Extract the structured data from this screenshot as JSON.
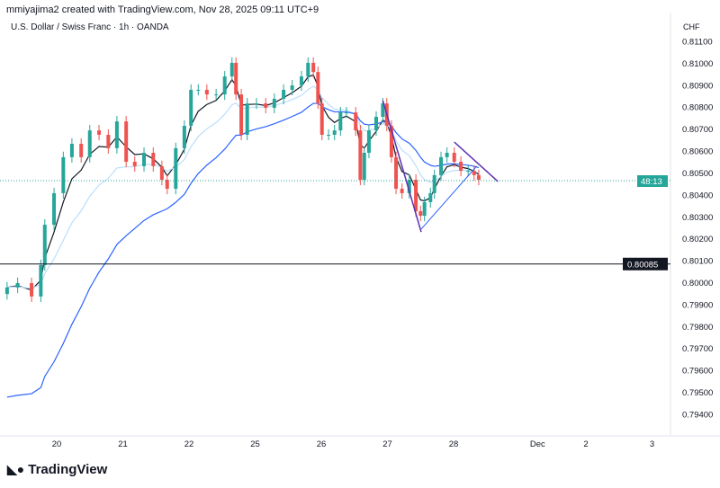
{
  "header": {
    "attribution": "mmiyajima2 created with TradingView.com, Nov 28, 2025 09:11 UTC+9",
    "symbol": "U.S. Dollar / Swiss Franc · 1h · OANDA",
    "currency": "CHF"
  },
  "logo": {
    "text": "TradingView"
  },
  "colors": {
    "up": "#26a69a",
    "down": "#ef5350",
    "ma_fast": "#131722",
    "ma_mid": "#bbdefb",
    "ma_slow": "#2962ff",
    "trend": "#5b2fb6",
    "channel": "#2962ff"
  },
  "chart_data": {
    "type": "candlestick",
    "x_unit": "trading days since Nov 20",
    "ylim": [
      0.7937,
      0.8114
    ],
    "yticks": [
      "0.81100",
      "0.81000",
      "0.80900",
      "0.80800",
      "0.80700",
      "0.80600",
      "0.80500",
      "0.80400",
      "0.80300",
      "0.80200",
      "0.80100",
      "0.80000",
      "0.79900",
      "0.79800",
      "0.79700",
      "0.79600",
      "0.79500",
      "0.79400"
    ],
    "xticks": [
      {
        "t": 0,
        "label": "20"
      },
      {
        "t": 1,
        "label": "21"
      },
      {
        "t": 2,
        "label": "22"
      },
      {
        "t": 3,
        "label": "25"
      },
      {
        "t": 4,
        "label": "26"
      },
      {
        "t": 5,
        "label": "27"
      },
      {
        "t": 6,
        "label": "28"
      },
      {
        "t": 7.27,
        "label": "Dec"
      },
      {
        "t": 8,
        "label": "2"
      },
      {
        "t": 9,
        "label": "3"
      }
    ],
    "t": [
      -0.75,
      -0.59,
      -0.38,
      -0.24,
      -0.18,
      -0.04,
      0.1,
      0.23,
      0.37,
      0.5,
      0.64,
      0.78,
      0.91,
      1.05,
      1.18,
      1.32,
      1.46,
      1.59,
      1.67,
      1.8,
      1.93,
      2.03,
      2.14,
      2.27,
      2.41,
      2.54,
      2.65,
      2.71,
      2.79,
      2.88,
      3.02,
      3.16,
      3.29,
      3.43,
      3.56,
      3.7,
      3.8,
      3.88,
      3.95,
      4.01,
      4.11,
      4.2,
      4.29,
      4.38,
      4.52,
      4.59,
      4.65,
      4.72,
      4.83,
      4.93,
      4.99,
      5.06,
      5.13,
      5.22,
      5.33,
      5.43,
      5.5,
      5.56,
      5.65,
      5.71,
      5.81,
      5.9,
      6.01,
      6.11,
      6.22,
      6.31,
      6.38
    ],
    "close": [
      0.79978,
      0.79998,
      0.79937,
      0.8008,
      0.80264,
      0.80408,
      0.80572,
      0.80633,
      0.80572,
      0.80694,
      0.80674,
      0.80613,
      0.80735,
      0.80551,
      0.80531,
      0.80592,
      0.80531,
      0.80469,
      0.80428,
      0.80613,
      0.80715,
      0.80879,
      0.80879,
      0.80858,
      0.80858,
      0.8094,
      0.81002,
      0.80858,
      0.80674,
      0.80817,
      0.80817,
      0.80797,
      0.80838,
      0.80879,
      0.80899,
      0.8094,
      0.81002,
      0.8096,
      0.80817,
      0.80674,
      0.80674,
      0.80694,
      0.80776,
      0.80776,
      0.80694,
      0.80469,
      0.80592,
      0.80694,
      0.80756,
      0.80817,
      0.80715,
      0.80572,
      0.80428,
      0.80408,
      0.80469,
      0.80326,
      0.80305,
      0.80367,
      0.80408,
      0.8049,
      0.80572,
      0.80592,
      0.80551,
      0.8051,
      0.8051,
      0.8049,
      0.80469
    ],
    "horizontal_line": {
      "price": 0.80085,
      "label": "0.80085"
    },
    "current_price": {
      "price": 0.80465,
      "countdown": "48:13"
    },
    "drawings": [
      {
        "type": "trendline",
        "color": "trend",
        "from": [
          4.93,
          0.8083
        ],
        "to": [
          5.51,
          0.80231
        ]
      },
      {
        "type": "trendline",
        "color": "trend",
        "from": [
          6.01,
          0.80641
        ],
        "to": [
          6.67,
          0.80461
        ]
      },
      {
        "type": "trendline",
        "color": "channel",
        "from": [
          5.51,
          0.80244
        ],
        "to": [
          6.35,
          0.80531
        ]
      }
    ]
  }
}
